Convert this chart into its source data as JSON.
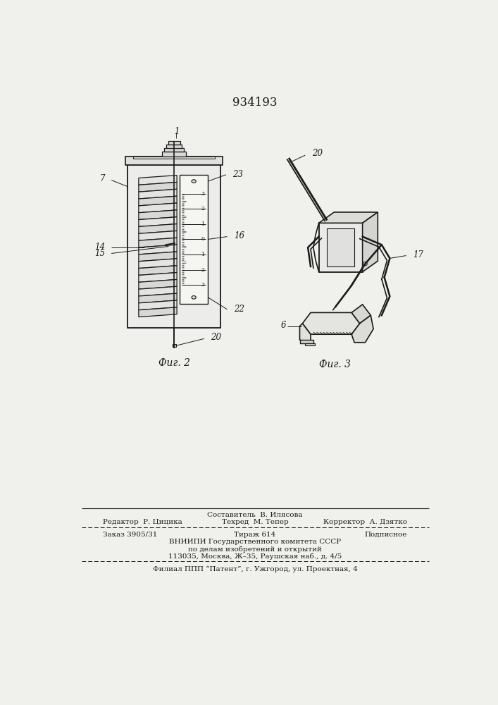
{
  "title": "934193",
  "bg_color": "#f0f0ec",
  "line_color": "#1a1a1a",
  "fig_label_2": "Фиг. 2",
  "fig_label_3": "Фиг. 3",
  "footer_sestavitel": "Составитель  В. Илясова",
  "footer_redaktor": "Редактор  Р. Цицика",
  "footer_tehred": "Техред  М. Тепер",
  "footer_korrektor": "Корректор  А. Дзятко",
  "footer_zakaz": "Заказ 3905/31",
  "footer_tirazh": "Тираж 614",
  "footer_podpisnoe": "Подписное",
  "footer_vniip1": "ВНИИПИ Государственного комитета СССР",
  "footer_vniip2": "по делам изобретений и открытий",
  "footer_vniip3": "113035, Москва, Ж–35, Раушская наб., д. 4/5",
  "footer_filial": "Филиал ППП “Патент”, г. Ужгород, ул. Проектная, 4"
}
